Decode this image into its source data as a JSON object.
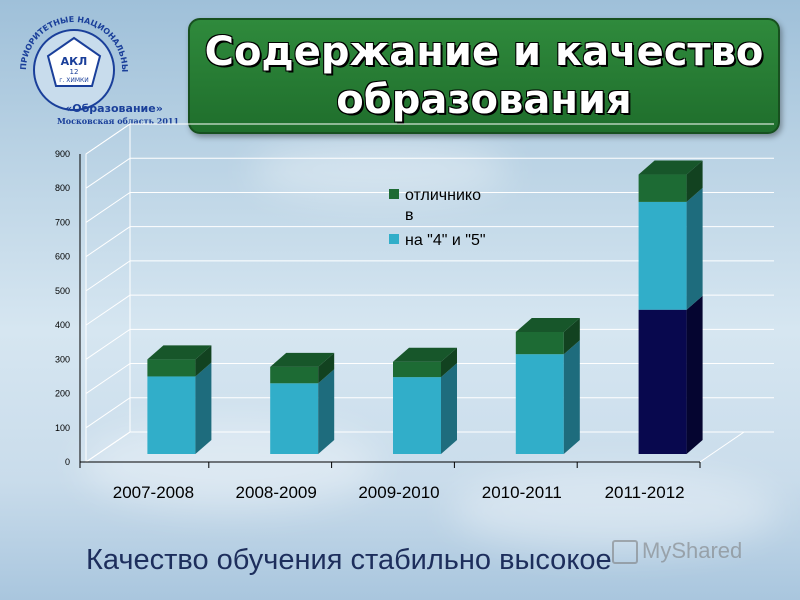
{
  "slide": {
    "title": "Содержание и качество образования",
    "caption": "Качество обучения стабильно высокое",
    "watermark": "MyShared"
  },
  "logo": {
    "arc_text": "ПРИОРИТЕТНЫЕ НАЦИОНАЛЬНЫЕ ПРОЕКТЫ",
    "school": "АКЛ",
    "number": "12",
    "city": "г. ХИМКИ",
    "program": "«Образование»",
    "region": "Московская область 2011"
  },
  "colors": {
    "base_series": "#31aec9",
    "top_series": "#1d6b34",
    "dark_series": "#08084e",
    "title_bg": "#2a7f37"
  },
  "chart_data": {
    "type": "bar",
    "stacked": true,
    "categories": [
      "2007-2008",
      "2008-2009",
      "2009-2010",
      "2010-2011",
      "2011-2012"
    ],
    "series": [
      {
        "name": "на \"4\" и \"5\"",
        "values": [
          250,
          230,
          248,
          315,
          760
        ]
      },
      {
        "name": "отличнико в",
        "values": [
          50,
          48,
          45,
          65,
          80
        ]
      }
    ],
    "dark_overlay": {
      "category": "2011-2012",
      "value": 445
    },
    "ylim": [
      0,
      900
    ],
    "yticks": [
      "0",
      "100",
      "200",
      "300",
      "400",
      "500",
      "600",
      "700",
      "800",
      "900"
    ],
    "legend_position": "top-right",
    "grid": true
  }
}
